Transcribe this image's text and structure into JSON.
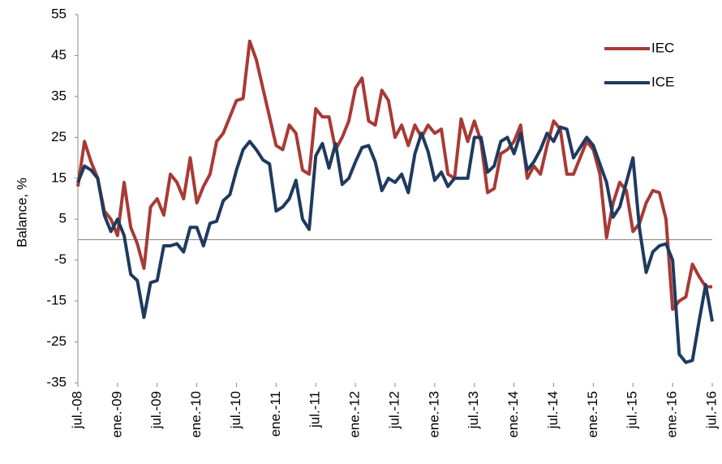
{
  "chart_data": {
    "type": "line",
    "y_label": "Balance, %",
    "categories": [
      "jul.-08",
      null,
      null,
      null,
      null,
      null,
      "ene.-09",
      null,
      null,
      null,
      null,
      null,
      "jul.-09",
      null,
      null,
      null,
      null,
      null,
      "ene.-10",
      null,
      null,
      null,
      null,
      null,
      "jul.-10",
      null,
      null,
      null,
      null,
      null,
      "ene.-11",
      null,
      null,
      null,
      null,
      null,
      "jul.-11",
      null,
      null,
      null,
      null,
      null,
      "ene.-12",
      null,
      null,
      null,
      null,
      null,
      "jul.-12",
      null,
      null,
      null,
      null,
      null,
      "ene.-13",
      null,
      null,
      null,
      null,
      null,
      "jul.-13",
      null,
      null,
      null,
      null,
      null,
      "ene.-14",
      null,
      null,
      null,
      null,
      null,
      "jul.-14",
      null,
      null,
      null,
      null,
      null,
      "ene.-15",
      null,
      null,
      null,
      null,
      null,
      "jul.-15",
      null,
      null,
      null,
      null,
      null,
      "ene.-16",
      null,
      null,
      null,
      null,
      null,
      "jul.-16"
    ],
    "series": [
      {
        "name": "IEC",
        "color": "#a83a36",
        "values": [
          13,
          24,
          19,
          15,
          7,
          5,
          1,
          14,
          3,
          -1,
          -7,
          8,
          10,
          6,
          16,
          14,
          10,
          20,
          9,
          13,
          16,
          24,
          26,
          30,
          34,
          34.5,
          48.5,
          44,
          37,
          30,
          23,
          22,
          28,
          26,
          17,
          16,
          32,
          30,
          30,
          22,
          25,
          29,
          37,
          39.5,
          29,
          28,
          36.5,
          34,
          25,
          28,
          23,
          28,
          25,
          28,
          26,
          27,
          16,
          15,
          29.5,
          24,
          29,
          24,
          11.5,
          12.5,
          21,
          22,
          24,
          28,
          15,
          18,
          16,
          23,
          29,
          27,
          16,
          16,
          20,
          24,
          22,
          16,
          0.5,
          9,
          14,
          12,
          2,
          4,
          9,
          12,
          11.5,
          5,
          -17,
          -15,
          -14,
          -6,
          -9,
          -11.5,
          -11.5
        ]
      },
      {
        "name": "ICE",
        "color": "#1f3a5f",
        "values": [
          14,
          18,
          17,
          15,
          6,
          2,
          5,
          1,
          -8.5,
          -10,
          -19,
          -10.5,
          -10,
          -1.5,
          -1.5,
          -1,
          -3,
          3,
          3,
          -1.5,
          4,
          4.5,
          9.5,
          11,
          17,
          22,
          24,
          22,
          19.5,
          18.5,
          7,
          8,
          10,
          14.5,
          5,
          2.5,
          20.5,
          23.5,
          17.5,
          23.5,
          13.5,
          15,
          19,
          22.5,
          23,
          19,
          12,
          15,
          14,
          16,
          11.5,
          21,
          26,
          21.5,
          14.5,
          16.5,
          13,
          15,
          15,
          15,
          25,
          25,
          16.5,
          18,
          24,
          25,
          21,
          26,
          17,
          19,
          22,
          26,
          24,
          27.5,
          27,
          20,
          22.5,
          25,
          23,
          18.5,
          14,
          5.5,
          8,
          14,
          20,
          2.5,
          -8,
          -3,
          -1.5,
          -1,
          -5,
          -28,
          -30,
          -29.5,
          -20,
          -11,
          -20
        ]
      }
    ],
    "ylim": [
      -35,
      55
    ],
    "yticks": [
      -35,
      -25,
      -15,
      -5,
      5,
      15,
      25,
      35,
      45,
      55
    ],
    "zero_line": true,
    "legend": "upper right"
  }
}
